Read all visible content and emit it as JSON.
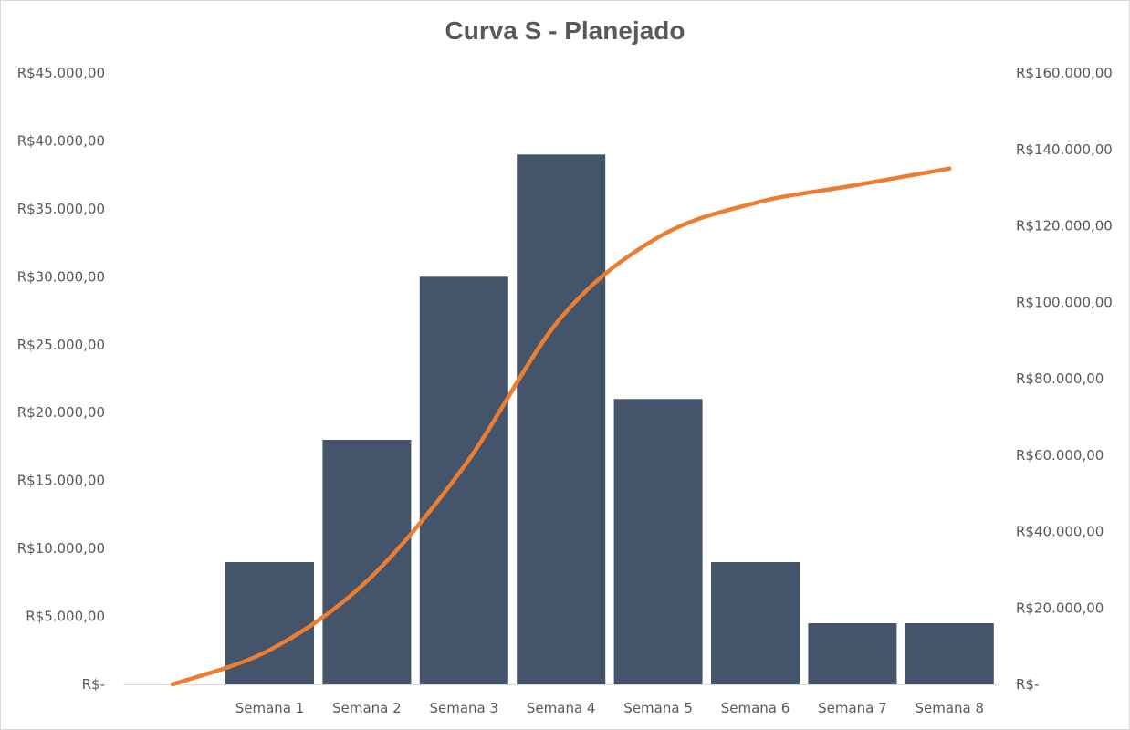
{
  "chart_data": {
    "type": "bar",
    "title": "Curva S - Planejado",
    "xlabel": "",
    "ylabel": "",
    "categories": [
      "Semana 1",
      "Semana 2",
      "Semana 3",
      "Semana 4",
      "Semana 5",
      "Semana 6",
      "Semana 7",
      "Semana 8"
    ],
    "series": [
      {
        "type": "bar",
        "axis": "left",
        "color": "#44546a",
        "values": [
          9000,
          18000,
          30000,
          39000,
          21000,
          9000,
          4500,
          4500
        ]
      },
      {
        "type": "line",
        "axis": "right",
        "color": "#ed7d31",
        "smooth": true,
        "x": [
          "",
          "Semana 1",
          "Semana 2",
          "Semana 3",
          "Semana 4",
          "Semana 5",
          "Semana 6",
          "Semana 7",
          "Semana 8"
        ],
        "values": [
          0,
          9000,
          27000,
          57000,
          96000,
          117000,
          126000,
          130500,
          135000
        ]
      }
    ],
    "y_left": {
      "ylim": [
        0,
        45000
      ],
      "ticks": [
        0,
        5000,
        10000,
        15000,
        20000,
        25000,
        30000,
        35000,
        40000,
        45000
      ],
      "tick_labels": [
        "R$-",
        "R$5.000,00",
        "R$10.000,00",
        "R$15.000,00",
        "R$20.000,00",
        "R$25.000,00",
        "R$30.000,00",
        "R$35.000,00",
        "R$40.000,00",
        "R$45.000,00"
      ]
    },
    "y_right": {
      "ylim": [
        0,
        160000
      ],
      "ticks": [
        0,
        20000,
        40000,
        60000,
        80000,
        100000,
        120000,
        140000,
        160000
      ],
      "tick_labels": [
        "R$-",
        "R$20.000,00",
        "R$40.000,00",
        "R$60.000,00",
        "R$80.000,00",
        "R$100.000,00",
        "R$120.000,00",
        "R$140.000,00",
        "R$160.000,00"
      ]
    },
    "grid": false,
    "legend": "none"
  }
}
